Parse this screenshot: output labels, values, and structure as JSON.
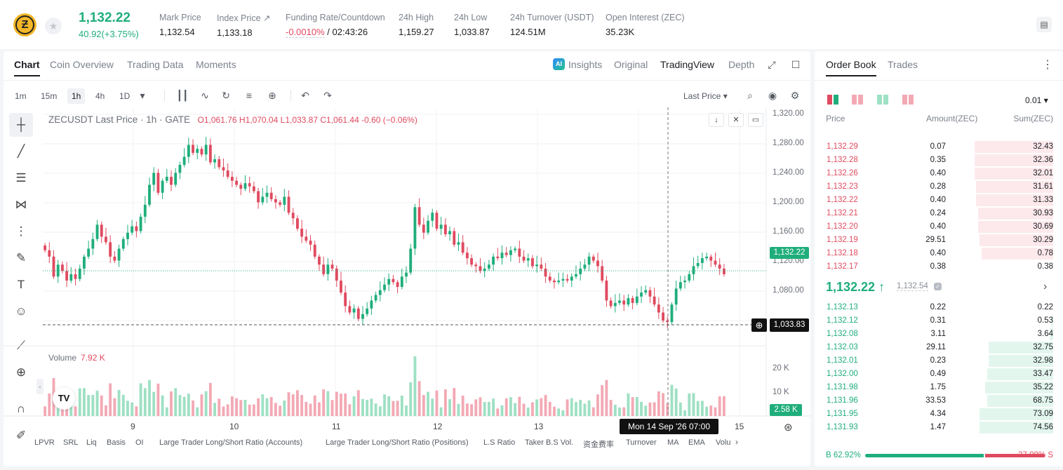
{
  "ticker": {
    "price": "1,132.22",
    "change": "40.92(+3.75%)",
    "stats": [
      {
        "label": "Mark Price",
        "value": "1,132.54"
      },
      {
        "label": "Index Price ↗",
        "value": "1,133.18"
      },
      {
        "label": "Funding Rate/Countdown",
        "value_red": "-0.0010%",
        "value": " / 02:43:26"
      },
      {
        "label": "24h High",
        "value": "1,159.27"
      },
      {
        "label": "24h Low",
        "value": "1,033.87"
      },
      {
        "label": "24h Turnover (USDT)",
        "value": "124.51M"
      },
      {
        "label": "Open Interest (ZEC)",
        "value": "35.23K"
      }
    ]
  },
  "chart_tabs": [
    "Chart",
    "Coin Overview",
    "Trading Data",
    "Moments"
  ],
  "view_tabs": {
    "insights": "Insights",
    "original": "Original",
    "tradingview": "TradingView",
    "depth": "Depth"
  },
  "timeframes": [
    "1m",
    "15m",
    "1h",
    "4h",
    "1D"
  ],
  "active_timeframe": "1h",
  "price_source": "Last Price",
  "legend": {
    "symbol": "ZECUSDT Last Price · 1h · GATE",
    "o": "O",
    "o_val": "1,061.76",
    "h": "H",
    "h_val": "1,070.04",
    "l": "L",
    "l_val": "1,033.87",
    "c": "C",
    "c_val": "1,061.44",
    "chg": "-0.60 (−0.06%)"
  },
  "volume": {
    "label": "Volume",
    "value": "7.92 K"
  },
  "price_tag": "1,132.22",
  "cross_tag": "1,033.83",
  "vol_tag": "2.58 K",
  "time_tag": "Mon 14 Sep '26   07:00",
  "y_ticks": [
    "1,320.00",
    "1,280.00",
    "1,240.00",
    "1,200.00",
    "1,160.00",
    "1,120.00",
    "1,080.00"
  ],
  "vol_ticks": [
    "20 K",
    "10 K"
  ],
  "x_ticks": [
    "9",
    "10",
    "11",
    "12",
    "13",
    "15"
  ],
  "indicators": [
    "LPVR",
    "SRL",
    "Liq",
    "Basis",
    "OI",
    "Large Trader Long/Short Ratio (Accounts)",
    "Large Trader Long/Short Ratio (Positions)",
    "L.S Ratio",
    "Taker B.S Vol.",
    "资金费率",
    "Turnover",
    "MA",
    "EMA",
    "Volu"
  ],
  "chart_data": {
    "type": "candlestick",
    "title": "ZECUSDT Last Price · 1h · GATE",
    "ylim": [
      1040,
      1330
    ],
    "candles_close": [
      1158,
      1150,
      1125,
      1140,
      1132,
      1120,
      1128,
      1122,
      1135,
      1150,
      1160,
      1172,
      1190,
      1175,
      1168,
      1150,
      1145,
      1160,
      1172,
      1180,
      1188,
      1182,
      1200,
      1215,
      1240,
      1255,
      1230,
      1245,
      1250,
      1240,
      1255,
      1265,
      1275,
      1290,
      1280,
      1285,
      1278,
      1290,
      1268,
      1272,
      1262,
      1258,
      1250,
      1245,
      1240,
      1235,
      1242,
      1238,
      1232,
      1218,
      1225,
      1230,
      1222,
      1218,
      1215,
      1225,
      1205,
      1198,
      1185,
      1175,
      1170,
      1165,
      1150,
      1140,
      1128,
      1140,
      1135,
      1120,
      1105,
      1088,
      1080,
      1085,
      1072,
      1078,
      1085,
      1095,
      1102,
      1108,
      1115,
      1122,
      1118,
      1112,
      1125,
      1130,
      1160,
      1212,
      1190,
      1180,
      1195,
      1205,
      1185,
      1190,
      1178,
      1182,
      1165,
      1168,
      1155,
      1148,
      1140,
      1138,
      1132,
      1135,
      1140,
      1150,
      1148,
      1155,
      1152,
      1158,
      1160,
      1150,
      1145,
      1148,
      1138,
      1140,
      1135,
      1125,
      1120,
      1118,
      1120,
      1122,
      1120,
      1125,
      1128,
      1135,
      1140,
      1150,
      1145,
      1138,
      1120,
      1095,
      1088,
      1092,
      1095,
      1090,
      1098,
      1092,
      1100,
      1105,
      1108,
      1100,
      1090,
      1080,
      1070,
      1068,
      1090,
      1110,
      1118,
      1120,
      1128,
      1138,
      1142,
      1148,
      1150,
      1145,
      1140,
      1135,
      1128
    ]
  },
  "order_book": {
    "tabs": [
      "Order Book",
      "Trades"
    ],
    "precision": "0.01",
    "columns": [
      "Price",
      "Amount(ZEC)",
      "Sum(ZEC)"
    ],
    "asks": [
      {
        "price": "1,132.29",
        "amount": "0.07",
        "sum": "32.43",
        "depth": 0.44
      },
      {
        "price": "1,132.28",
        "amount": "0.35",
        "sum": "32.36",
        "depth": 0.44
      },
      {
        "price": "1,132.26",
        "amount": "0.40",
        "sum": "32.01",
        "depth": 0.44
      },
      {
        "price": "1,132.23",
        "amount": "0.28",
        "sum": "31.61",
        "depth": 0.43
      },
      {
        "price": "1,132.22",
        "amount": "0.40",
        "sum": "31.33",
        "depth": 0.43
      },
      {
        "price": "1,132.21",
        "amount": "0.24",
        "sum": "30.93",
        "depth": 0.42
      },
      {
        "price": "1,132.20",
        "amount": "0.40",
        "sum": "30.69",
        "depth": 0.42
      },
      {
        "price": "1,132.19",
        "amount": "29.51",
        "sum": "30.29",
        "depth": 0.41
      },
      {
        "price": "1,132.18",
        "amount": "0.40",
        "sum": "0.78",
        "depth": 0.4
      },
      {
        "price": "1,132.17",
        "amount": "0.38",
        "sum": "0.38",
        "depth": 0.0
      }
    ],
    "mid_price": "1,132.22 ↑",
    "mark_price": "1,132.54",
    "bids": [
      {
        "price": "1,132.13",
        "amount": "0.22",
        "sum": "0.22",
        "depth": 0.0
      },
      {
        "price": "1,132.12",
        "amount": "0.31",
        "sum": "0.53",
        "depth": 0.01
      },
      {
        "price": "1,132.08",
        "amount": "3.11",
        "sum": "3.64",
        "depth": 0.02
      },
      {
        "price": "1,132.03",
        "amount": "29.11",
        "sum": "32.75",
        "depth": 0.36
      },
      {
        "price": "1,132.01",
        "amount": "0.23",
        "sum": "32.98",
        "depth": 0.36
      },
      {
        "price": "1,132.00",
        "amount": "0.49",
        "sum": "33.47",
        "depth": 0.37
      },
      {
        "price": "1,131.98",
        "amount": "1.75",
        "sum": "35.22",
        "depth": 0.38
      },
      {
        "price": "1,131.96",
        "amount": "33.53",
        "sum": "68.75",
        "depth": 0.37
      },
      {
        "price": "1,131.95",
        "amount": "4.34",
        "sum": "73.09",
        "depth": 0.41
      },
      {
        "price": "1,131.93",
        "amount": "1.47",
        "sum": "74.56",
        "depth": 0.41
      }
    ],
    "buy_ratio": "B 62.92%",
    "sell_ratio": "37.08% S",
    "buy_fraction": 0.6292
  },
  "colors": {
    "up": "#1fae7b",
    "down": "#e04a5f",
    "up_vol": "#9ee0c3",
    "down_vol": "#f3a9b4"
  }
}
